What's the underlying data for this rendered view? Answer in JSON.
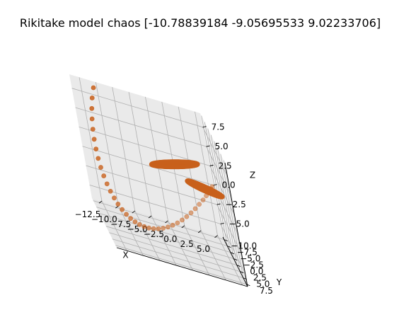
{
  "chart_data": {
    "type": "scatter",
    "projection": "3d",
    "title": "Rikitake model chaos [-10.78839184  -9.05695533   9.02233706]",
    "xlabel": "X",
    "ylabel": "Y",
    "zlabel": "Z",
    "x_ticks": [
      -12.5,
      -10.0,
      -7.5,
      -5.0,
      -2.5,
      0.0,
      2.5,
      5.0
    ],
    "y_ticks": [
      -10.0,
      -7.5,
      -5.0,
      -2.5,
      0.0,
      2.5,
      5.0,
      7.5
    ],
    "z_ticks": [
      -5.0,
      -2.5,
      0.0,
      2.5,
      5.0,
      7.5
    ],
    "x_tick_labels": [
      "−12.5",
      "−10.0",
      "−7.5",
      "−5.0",
      "−2.5",
      "0.0",
      "2.5",
      "5.0"
    ],
    "y_tick_labels": [
      "−10.0",
      "−7.5",
      "−5.0",
      "−2.5",
      "0.0",
      "2.5",
      "5.0",
      "7.5"
    ],
    "z_tick_labels": [
      "−5.0",
      "−2.5",
      "0.0",
      "2.5",
      "5.0",
      "7.5"
    ],
    "xlim": [
      -14.0,
      5.8
    ],
    "ylim": [
      -11.0,
      8.4
    ],
    "zlim": [
      -6.7,
      9.3
    ],
    "grid": true,
    "marker_color": "#c8601b",
    "start_point": [
      -10.78839184,
      -9.05695533,
      9.02233706
    ],
    "transient": {
      "x": [
        -10.79,
        -11.31,
        -11.69,
        -11.98,
        -12.19,
        -12.31,
        -12.35,
        -12.32,
        -12.22,
        -12.05,
        -11.83,
        -11.55,
        -11.22,
        -10.85,
        -10.43,
        -9.97,
        -9.47,
        -8.93,
        -8.36,
        -7.75,
        -7.11,
        -6.44,
        -5.74,
        -5.02,
        -4.28,
        -3.52,
        -2.75,
        -1.97,
        -1.19,
        -0.42,
        0.35,
        1.08,
        1.8,
        2.42,
        2.95,
        3.35,
        3.6
      ],
      "y": [
        -9.06,
        -8.95,
        -8.79,
        -8.58,
        -8.32,
        -8.02,
        -7.68,
        -7.3,
        -6.89,
        -6.45,
        -5.98,
        -5.49,
        -4.98,
        -4.45,
        -3.91,
        -3.36,
        -2.81,
        -2.26,
        -1.71,
        -1.17,
        -0.64,
        -0.12,
        0.38,
        0.86,
        1.32,
        1.75,
        2.16,
        2.53,
        2.87,
        3.17,
        3.43,
        3.65,
        3.82,
        3.94,
        4.01,
        4.03,
        4.0
      ],
      "z": [
        9.02,
        7.6,
        6.2,
        4.85,
        3.55,
        2.32,
        1.16,
        0.08,
        -0.92,
        -1.83,
        -2.65,
        -3.37,
        -3.99,
        -4.51,
        -4.93,
        -5.25,
        -5.47,
        -5.59,
        -5.62,
        -5.55,
        -5.39,
        -5.14,
        -4.81,
        -4.39,
        -3.9,
        -3.33,
        -2.7,
        -2.01,
        -1.27,
        -0.48,
        0.34,
        1.16,
        1.96,
        2.7,
        3.35,
        3.87,
        4.2
      ]
    },
    "attractor": {
      "lobes": [
        {
          "center": [
            2.6,
            2.3,
            3.1
          ],
          "radius": [
            2.3,
            2.0
          ],
          "z_swing": 0.9,
          "scale": [
            0.85,
            1.12
          ]
        },
        {
          "center": [
            -0.9,
            -2.5,
            3.8
          ],
          "radius": [
            3.2,
            2.6
          ],
          "z_swing": 1.4,
          "scale": [
            0.78,
            1.15
          ]
        }
      ]
    }
  }
}
